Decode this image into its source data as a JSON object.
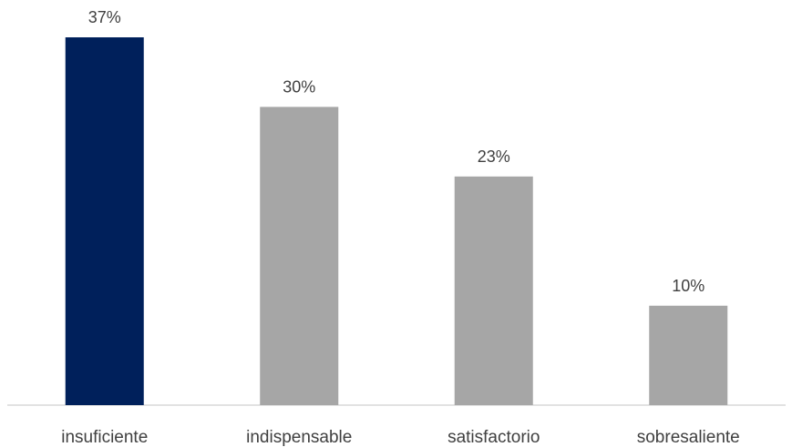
{
  "chart_data": {
    "type": "bar",
    "categories": [
      "insuficiente",
      "indispensable",
      "satisfactorio",
      "sobresaliente"
    ],
    "values": [
      37,
      30,
      23,
      10
    ],
    "value_labels": [
      "37%",
      "30%",
      "23%",
      "10%"
    ],
    "unit": "%",
    "title": "",
    "xlabel": "",
    "ylabel": "",
    "ylim": [
      0,
      37
    ],
    "grid": false,
    "legend": "none",
    "highlight_index": 0,
    "colors": {
      "highlight": "#00205B",
      "default": "#A6A6A6",
      "axis": "#D9D9D9",
      "text": "#404040"
    }
  }
}
